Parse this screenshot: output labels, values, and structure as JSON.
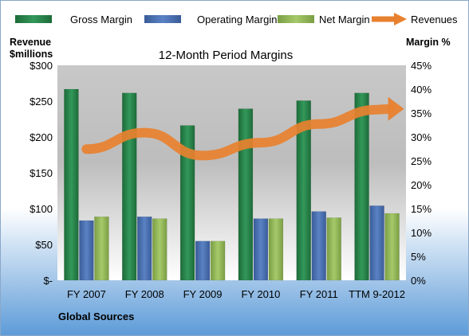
{
  "chart_data": {
    "type": "bar",
    "title": "12-Month Period Margins",
    "source": "Global Sources",
    "categories": [
      "FY 2007",
      "FY 2008",
      "FY 2009",
      "FY 2010",
      "FY 2011",
      "TTM 9-2012"
    ],
    "left_axis": {
      "label_line1": "Revenue",
      "label_line2": "$millions",
      "ylim": [
        0,
        300
      ],
      "ticks": [
        0,
        50,
        100,
        150,
        200,
        250,
        300
      ],
      "tick_labels": [
        "$-",
        "$50",
        "$100",
        "$150",
        "$200",
        "$250",
        "$300"
      ]
    },
    "right_axis": {
      "label": "Margin %",
      "ylim": [
        0,
        45
      ],
      "ticks": [
        0,
        5,
        10,
        15,
        20,
        25,
        30,
        35,
        40,
        45
      ],
      "tick_labels": [
        "0%",
        "5%",
        "10%",
        "15%",
        "20%",
        "25%",
        "30%",
        "35%",
        "40%",
        "45%"
      ]
    },
    "series": [
      {
        "name": "Gross Margin",
        "type": "bar",
        "axis": "right",
        "color": "#2e8b4f",
        "values": [
          40.0,
          39.2,
          32.4,
          35.9,
          37.6,
          39.2
        ]
      },
      {
        "name": "Operating Margin",
        "type": "bar",
        "axis": "right",
        "color": "#4f74b5",
        "values": [
          12.5,
          13.3,
          8.2,
          12.9,
          14.4,
          15.6
        ]
      },
      {
        "name": "Net Margin",
        "type": "bar",
        "axis": "right",
        "color": "#93b85a",
        "values": [
          13.3,
          12.9,
          8.2,
          12.9,
          13.1,
          14.0
        ]
      },
      {
        "name": "Revenues",
        "type": "line",
        "axis": "left",
        "color": "#e8812f",
        "values": [
          183,
          206,
          174,
          192,
          218,
          238
        ]
      }
    ],
    "legend_position": "top",
    "grid": false
  }
}
